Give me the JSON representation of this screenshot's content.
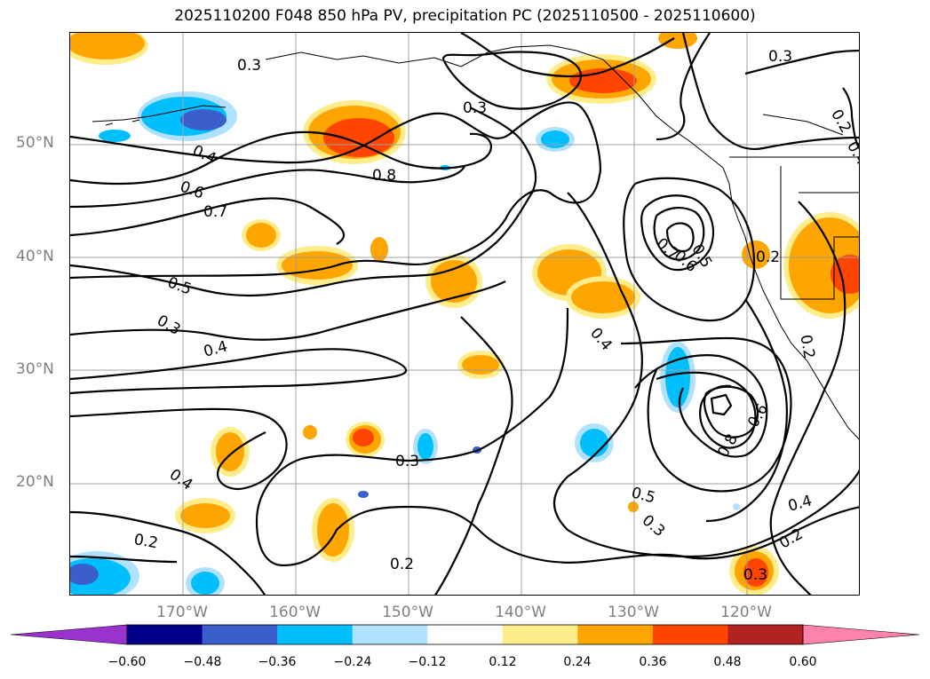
{
  "title": "2025110200 F048 850 hPa PV, precipitation PC (2025110500 - 2025110600)",
  "map": {
    "lat_labels": [
      "50°N",
      "40°N",
      "30°N",
      "20°N"
    ],
    "lon_labels": [
      "170°W",
      "160°W",
      "150°W",
      "140°W",
      "130°W",
      "120°W"
    ],
    "contour_labels": [
      "0.3",
      "0.3",
      "0.3",
      "0.2",
      "0.4",
      "0.6",
      "0.7",
      "0.8",
      "0.5",
      "0.3",
      "0.4",
      "0.4",
      "0.2",
      "0.3",
      "0.4",
      "0.7",
      "0.6",
      "0.5",
      "0.2",
      "0.4",
      "0.2",
      "0.6",
      "0.8",
      "0.5",
      "0.3",
      "0.4",
      "0.2",
      "0.3",
      "0.2"
    ]
  },
  "colorbar": {
    "tick_labels": [
      "−0.60",
      "−0.48",
      "−0.36",
      "−0.24",
      "−0.12",
      "0.12",
      "0.24",
      "0.36",
      "0.48",
      "0.60"
    ],
    "colors": [
      "#9a32cd",
      "#00008b",
      "#3a5fcd",
      "#00bfff",
      "#b0e2ff",
      "#ffffff",
      "#ffec8b",
      "#ffa500",
      "#ff4500",
      "#b22222",
      "#ff82ab"
    ]
  },
  "colors": {
    "light_yellow": "#ffec8b",
    "orange": "#ffa500",
    "orange_red": "#ff4500",
    "deep_sky_blue": "#00bfff",
    "light_blue": "#b0e2ff",
    "royal_blue": "#3a5fcd"
  }
}
